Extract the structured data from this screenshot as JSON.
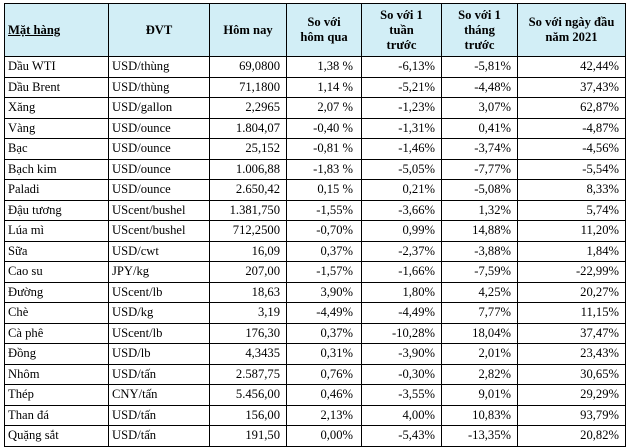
{
  "table": {
    "headers": {
      "item": "Mặt hàng",
      "unit": "ĐVT",
      "today": "Hôm nay",
      "vs_yesterday": [
        "So với",
        "hôm qua"
      ],
      "vs_week": [
        "So với 1",
        "tuần",
        "trước"
      ],
      "vs_month": [
        "So với 1",
        "tháng",
        "trước"
      ],
      "vs_year_start": [
        "So với ngày đầu",
        "năm 2021"
      ]
    },
    "rows": [
      {
        "item": "Dầu WTI",
        "unit": "USD/thùng",
        "today": "69,0800",
        "d1": "1,38 %",
        "w1": "-6,13%",
        "m1": "-5,81%",
        "ytd": "42,44%"
      },
      {
        "item": "Dầu Brent",
        "unit": "USD/thùng",
        "today": "71,1800",
        "d1": "1,14 %",
        "w1": "-5,21%",
        "m1": "-4,48%",
        "ytd": "37,43%"
      },
      {
        "item": "Xăng",
        "unit": "USD/gallon",
        "today": "2,2965",
        "d1": "2,07 %",
        "w1": "-1,23%",
        "m1": "3,07%",
        "ytd": "62,87%"
      },
      {
        "item": "Vàng",
        "unit": "USD/ounce",
        "today": "1.804,07",
        "d1": "-0,40 %",
        "w1": "-1,31%",
        "m1": "0,41%",
        "ytd": "-4,87%"
      },
      {
        "item": "Bạc",
        "unit": "USD/ounce",
        "today": "25,152",
        "d1": "-0,81 %",
        "w1": "-1,46%",
        "m1": "-3,74%",
        "ytd": "-4,56%"
      },
      {
        "item": "Bạch kim",
        "unit": "USD/ounce",
        "today": "1.006,88",
        "d1": "-1,83 %",
        "w1": "-5,05%",
        "m1": "-7,77%",
        "ytd": "-5,54%"
      },
      {
        "item": "Paladi",
        "unit": "USD/ounce",
        "today": "2.650,42",
        "d1": "0,15 %",
        "w1": "0,21%",
        "m1": "-5,08%",
        "ytd": "8,33%"
      },
      {
        "item": "Đậu tương",
        "unit": "UScent/bushel",
        "today": "1.381,750",
        "d1": "-1,55%",
        "w1": "-3,66%",
        "m1": "1,32%",
        "ytd": "5,74%"
      },
      {
        "item": "Lúa mì",
        "unit": "UScent/bushel",
        "today": "712,2500",
        "d1": "-0,70%",
        "w1": "0,99%",
        "m1": "14,88%",
        "ytd": "11,20%"
      },
      {
        "item": "Sữa",
        "unit": "USD/cwt",
        "today": "16,09",
        "d1": "0,37%",
        "w1": "-2,37%",
        "m1": "-3,88%",
        "ytd": "1,84%"
      },
      {
        "item": "Cao su",
        "unit": "JPY/kg",
        "today": "207,00",
        "d1": "-1,57%",
        "w1": "-1,66%",
        "m1": "-7,59%",
        "ytd": "-22,99%"
      },
      {
        "item": "Đường",
        "unit": "UScent/lb",
        "today": "18,63",
        "d1": "3,90%",
        "w1": "1,80%",
        "m1": "4,25%",
        "ytd": "20,27%"
      },
      {
        "item": "Chè",
        "unit": "USD/kg",
        "today": "3,19",
        "d1": "-4,49%",
        "w1": "-4,49%",
        "m1": "7,77%",
        "ytd": "11,15%"
      },
      {
        "item": "Cà phê",
        "unit": "UScent/lb",
        "today": "176,30",
        "d1": "0,37%",
        "w1": "-10,28%",
        "m1": "18,04%",
        "ytd": "37,47%"
      },
      {
        "item": "Đồng",
        "unit": "USD/lb",
        "today": "4,3435",
        "d1": "0,31%",
        "w1": "-3,90%",
        "m1": "2,01%",
        "ytd": "23,43%"
      },
      {
        "item": "Nhôm",
        "unit": "USD/tấn",
        "today": "2.587,75",
        "d1": "0,76%",
        "w1": "-0,30%",
        "m1": "2,82%",
        "ytd": "30,65%"
      },
      {
        "item": "Thép",
        "unit": "CNY/tấn",
        "today": "5.456,00",
        "d1": "0,46%",
        "w1": "-3,55%",
        "m1": "9,01%",
        "ytd": "29,29%"
      },
      {
        "item": "Than đá",
        "unit": "USD/tấn",
        "today": "156,00",
        "d1": "2,13%",
        "w1": "4,00%",
        "m1": "10,83%",
        "ytd": "93,79%"
      },
      {
        "item": "Quặng sắt",
        "unit": "USD/tấn",
        "today": "191,50",
        "d1": "0,00%",
        "w1": "-5,43%",
        "m1": "-13,35%",
        "ytd": "20,82%"
      }
    ]
  }
}
